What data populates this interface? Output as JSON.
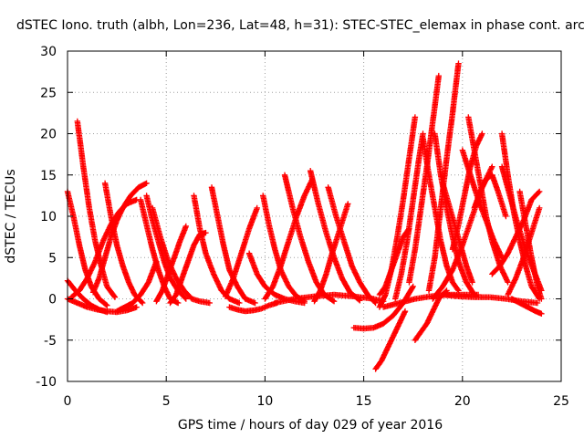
{
  "chart_data": {
    "type": "scatter",
    "title": "dSTEC Iono. truth (albh, Lon=236, Lat=48, h=31): STEC-STEC_elemax in phase cont. arc",
    "xlabel": "GPS time / hours of day 029 of year 2016",
    "ylabel": "dSTEC  / TECUs",
    "xlim": [
      0,
      25
    ],
    "ylim": [
      -10,
      30
    ],
    "xticks": [
      0,
      5,
      10,
      15,
      20,
      25
    ],
    "yticks": [
      -10,
      -5,
      0,
      5,
      10,
      15,
      20,
      25,
      30
    ],
    "grid": true,
    "marker": "+",
    "color": "#ff0000",
    "series": [
      {
        "x": [
          0.0,
          0.3,
          0.6,
          0.9,
          1.2,
          1.6,
          2.0
        ],
        "y": [
          13.0,
          10.0,
          6.5,
          3.5,
          1.5,
          0.0,
          -0.8
        ]
      },
      {
        "x": [
          0.5,
          0.8,
          1.1,
          1.4,
          1.7,
          2.0,
          2.4
        ],
        "y": [
          21.5,
          16.0,
          11.0,
          7.0,
          4.0,
          1.5,
          0.2
        ]
      },
      {
        "x": [
          0.0,
          0.4,
          0.8,
          1.2,
          1.6,
          2.0
        ],
        "y": [
          2.2,
          1.0,
          0.0,
          -0.8,
          -1.3,
          -1.6
        ]
      },
      {
        "x": [
          0.0,
          0.5,
          1.0,
          1.5,
          2.0,
          2.5,
          3.0,
          3.5
        ],
        "y": [
          0.0,
          -0.5,
          -1.0,
          -1.3,
          -1.5,
          -1.6,
          -1.4,
          -1.0
        ]
      },
      {
        "x": [
          0.2,
          0.6,
          1.0,
          1.4,
          1.8,
          2.2,
          2.6,
          3.0,
          3.5
        ],
        "y": [
          0.2,
          1.0,
          2.5,
          4.5,
          7.0,
          9.0,
          10.5,
          11.5,
          12.0
        ]
      },
      {
        "x": [
          1.3,
          1.6,
          1.9,
          2.2,
          2.5,
          2.8,
          3.2,
          3.6,
          4.0
        ],
        "y": [
          0.8,
          2.5,
          5.0,
          7.5,
          9.5,
          11.0,
          12.5,
          13.5,
          14.0
        ]
      },
      {
        "x": [
          1.9,
          2.2,
          2.5,
          2.8,
          3.1,
          3.4,
          3.8
        ],
        "y": [
          14.0,
          10.0,
          6.5,
          4.0,
          2.0,
          0.5,
          -0.5
        ]
      },
      {
        "x": [
          2.5,
          2.9,
          3.3,
          3.7,
          4.1,
          4.5
        ],
        "y": [
          -1.5,
          -1.0,
          -0.5,
          0.5,
          2.0,
          4.5
        ]
      },
      {
        "x": [
          3.7,
          4.0,
          4.3,
          4.6,
          4.9,
          5.2,
          5.6
        ],
        "y": [
          12.0,
          9.0,
          6.0,
          3.5,
          1.5,
          0.0,
          -0.5
        ]
      },
      {
        "x": [
          4.0,
          4.3,
          4.6,
          4.9,
          5.2,
          5.6,
          6.0
        ],
        "y": [
          12.5,
          9.5,
          7.0,
          4.5,
          2.5,
          1.0,
          0.0
        ]
      },
      {
        "x": [
          4.3,
          4.7,
          5.1,
          5.5,
          5.9,
          6.3,
          6.7,
          7.2
        ],
        "y": [
          11.0,
          7.5,
          4.5,
          2.5,
          1.0,
          0.0,
          -0.3,
          -0.5
        ]
      },
      {
        "x": [
          4.5,
          4.8,
          5.1,
          5.4,
          5.7,
          6.0
        ],
        "y": [
          -0.3,
          1.0,
          3.0,
          5.0,
          7.0,
          8.8
        ]
      },
      {
        "x": [
          5.2,
          5.5,
          5.8,
          6.1,
          6.4,
          6.7,
          7.0
        ],
        "y": [
          -0.5,
          0.5,
          2.5,
          4.5,
          6.5,
          7.8,
          8.0
        ]
      },
      {
        "x": [
          6.4,
          6.7,
          7.0,
          7.4,
          7.8,
          8.2,
          8.7
        ],
        "y": [
          12.5,
          8.5,
          5.5,
          3.0,
          1.0,
          0.0,
          -0.5
        ]
      },
      {
        "x": [
          7.3,
          7.6,
          7.9,
          8.2,
          8.6,
          9.0,
          9.5
        ],
        "y": [
          13.5,
          10.0,
          6.5,
          3.5,
          1.5,
          0.0,
          -0.5
        ]
      },
      {
        "x": [
          8.0,
          8.4,
          8.8,
          9.2,
          9.6
        ],
        "y": [
          0.3,
          2.5,
          5.5,
          8.5,
          11.0
        ]
      },
      {
        "x": [
          8.2,
          8.6,
          9.0,
          9.4,
          9.8,
          10.2,
          10.6
        ],
        "y": [
          -1.0,
          -1.3,
          -1.5,
          -1.4,
          -1.2,
          -0.8,
          -0.5
        ]
      },
      {
        "x": [
          9.2,
          9.6,
          10.0,
          10.5,
          11.0,
          11.5,
          12.0
        ],
        "y": [
          5.5,
          3.0,
          1.5,
          0.5,
          0.0,
          -0.3,
          -0.5
        ]
      },
      {
        "x": [
          9.9,
          10.2,
          10.5,
          10.8,
          11.2,
          11.6,
          12.0
        ],
        "y": [
          12.5,
          9.0,
          6.0,
          3.5,
          1.5,
          0.3,
          -0.3
        ]
      },
      {
        "x": [
          10.0,
          10.4,
          10.8,
          11.2,
          11.6,
          12.0,
          12.4
        ],
        "y": [
          0.0,
          1.5,
          4.0,
          7.0,
          10.0,
          12.5,
          14.5
        ]
      },
      {
        "x": [
          11.0,
          11.4,
          11.8,
          12.2,
          12.6,
          13.0,
          13.5
        ],
        "y": [
          15.0,
          11.0,
          7.5,
          4.5,
          2.0,
          0.5,
          -0.3
        ]
      },
      {
        "x": [
          12.3,
          12.7,
          13.1,
          13.5,
          13.9,
          14.3,
          14.8
        ],
        "y": [
          15.5,
          11.5,
          8.0,
          5.0,
          2.5,
          0.8,
          -0.2
        ]
      },
      {
        "x": [
          12.5,
          12.8,
          13.1,
          13.4,
          13.8,
          14.2
        ],
        "y": [
          -0.3,
          1.0,
          3.0,
          5.5,
          8.5,
          11.5
        ]
      },
      {
        "x": [
          13.2,
          13.6,
          14.0,
          14.4,
          14.8,
          15.2,
          15.6
        ],
        "y": [
          13.5,
          10.0,
          7.0,
          4.0,
          2.0,
          0.5,
          -0.5
        ]
      },
      {
        "x": [
          10.5,
          11.5,
          12.5,
          13.5,
          14.5,
          15.5,
          16.0
        ],
        "y": [
          -0.5,
          0.0,
          0.3,
          0.5,
          0.3,
          0.0,
          -0.3
        ]
      },
      {
        "x": [
          14.5,
          15.0,
          15.5,
          16.0,
          16.5,
          17.0,
          17.5
        ],
        "y": [
          -3.5,
          -3.6,
          -3.5,
          -3.0,
          -2.0,
          -0.5,
          1.5
        ]
      },
      {
        "x": [
          15.6,
          15.9,
          16.2,
          16.5,
          16.8,
          17.1
        ],
        "y": [
          -8.5,
          -7.5,
          -6.0,
          -4.5,
          -3.0,
          -1.5
        ]
      },
      {
        "x": [
          15.8,
          16.1,
          16.4,
          16.7,
          17.0,
          17.3,
          17.6
        ],
        "y": [
          -1.0,
          0.5,
          3.5,
          7.5,
          12.0,
          17.0,
          22.0
        ]
      },
      {
        "x": [
          15.8,
          16.1,
          16.4,
          16.7,
          17.0,
          17.3
        ],
        "y": [
          0.5,
          1.5,
          3.5,
          5.5,
          7.5,
          8.5
        ]
      },
      {
        "x": [
          16.6,
          16.9,
          17.2,
          17.5,
          17.8,
          18.0
        ],
        "y": [
          0.0,
          3.0,
          7.0,
          12.0,
          17.0,
          20.0
        ]
      },
      {
        "x": [
          17.3,
          17.6,
          17.9,
          18.2,
          18.5,
          18.8
        ],
        "y": [
          2.0,
          6.0,
          11.0,
          16.0,
          21.5,
          27.0
        ]
      },
      {
        "x": [
          17.6,
          17.9,
          18.2,
          18.5,
          18.8,
          19.2
        ],
        "y": [
          -5.0,
          -4.0,
          -3.0,
          -1.5,
          0.0,
          1.0
        ]
      },
      {
        "x": [
          18.0,
          18.3,
          18.6,
          18.9,
          19.2,
          19.5,
          19.8
        ],
        "y": [
          19.5,
          15.0,
          11.0,
          7.0,
          4.0,
          2.0,
          1.0
        ]
      },
      {
        "x": [
          18.3,
          18.6,
          18.9,
          19.2,
          19.5,
          19.8
        ],
        "y": [
          1.0,
          5.0,
          11.0,
          17.0,
          22.5,
          28.5
        ]
      },
      {
        "x": [
          18.6,
          18.9,
          19.2,
          19.5,
          19.8,
          20.2,
          20.6
        ],
        "y": [
          20.0,
          15.0,
          11.0,
          7.5,
          4.5,
          2.0,
          0.5
        ]
      },
      {
        "x": [
          19.0,
          19.3,
          19.6,
          19.9,
          20.2,
          20.5
        ],
        "y": [
          14.0,
          11.5,
          9.0,
          6.5,
          4.0,
          2.0
        ]
      },
      {
        "x": [
          18.5,
          19.0,
          19.5,
          20.0,
          20.5,
          21.0,
          21.5
        ],
        "y": [
          0.0,
          1.5,
          3.5,
          6.5,
          10.0,
          13.5,
          16.0
        ]
      },
      {
        "x": [
          19.5,
          19.8,
          20.1,
          20.4,
          20.7,
          21.0
        ],
        "y": [
          6.0,
          9.0,
          12.5,
          16.0,
          18.5,
          20.0
        ]
      },
      {
        "x": [
          20.3,
          20.6,
          20.9,
          21.2,
          21.5,
          21.9,
          22.3
        ],
        "y": [
          22.0,
          18.0,
          14.0,
          10.0,
          7.0,
          4.0,
          2.0
        ]
      },
      {
        "x": [
          20.0,
          20.4,
          20.8,
          21.2,
          21.6,
          22.0
        ],
        "y": [
          18.0,
          15.0,
          12.0,
          9.5,
          7.0,
          5.0
        ]
      },
      {
        "x": [
          20.6,
          20.9,
          21.2,
          21.5,
          21.8,
          22.2
        ],
        "y": [
          11.0,
          13.0,
          14.5,
          15.0,
          13.0,
          10.0
        ]
      },
      {
        "x": [
          22.0,
          22.3,
          22.6,
          22.9,
          23.2,
          23.5,
          23.9
        ],
        "y": [
          20.0,
          15.0,
          10.5,
          7.0,
          4.0,
          1.5,
          0.0
        ]
      },
      {
        "x": [
          22.0,
          22.4,
          22.8,
          23.2,
          23.6,
          24.0
        ],
        "y": [
          16.0,
          12.5,
          9.0,
          6.0,
          3.5,
          1.0
        ]
      },
      {
        "x": [
          21.5,
          21.9,
          22.3,
          22.7,
          23.1,
          23.5,
          23.9
        ],
        "y": [
          3.0,
          4.0,
          5.5,
          7.5,
          9.5,
          12.0,
          13.0
        ]
      },
      {
        "x": [
          22.3,
          22.7,
          23.1,
          23.5,
          23.9
        ],
        "y": [
          0.5,
          2.5,
          5.0,
          8.0,
          11.0
        ]
      },
      {
        "x": [
          22.9,
          23.2,
          23.5,
          23.8,
          24.0
        ],
        "y": [
          13.0,
          9.0,
          5.0,
          1.5,
          0.0
        ]
      },
      {
        "x": [
          22.5,
          22.9,
          23.3,
          23.7,
          24.0
        ],
        "y": [
          0.0,
          -0.5,
          -1.0,
          -1.5,
          -1.8
        ]
      },
      {
        "x": [
          19.0,
          19.8,
          20.6,
          21.4,
          22.2,
          23.0,
          23.8
        ],
        "y": [
          0.5,
          0.3,
          0.2,
          0.2,
          0.0,
          -0.3,
          -0.5
        ]
      },
      {
        "x": [
          16.0,
          16.8,
          17.6,
          18.4,
          19.2,
          20.0,
          20.8
        ],
        "y": [
          -1.0,
          -0.5,
          0.0,
          0.3,
          0.5,
          0.5,
          0.5
        ]
      }
    ]
  }
}
